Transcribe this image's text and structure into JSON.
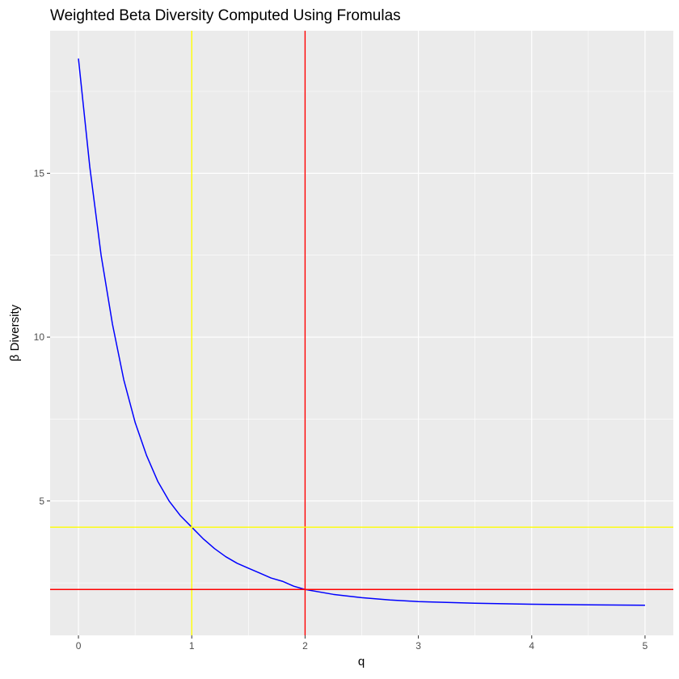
{
  "chart_data": {
    "type": "line",
    "title": "Weighted Beta Diversity Computed Using Fromulas",
    "xlabel": "q",
    "ylabel": "β Diversity",
    "xlim": [
      -0.25,
      5.25
    ],
    "ylim": [
      0.9,
      19.35
    ],
    "x_ticks": [
      0,
      1,
      2,
      3,
      4,
      5
    ],
    "x_tick_labels": [
      "0",
      "1",
      "2",
      "3",
      "4",
      "5"
    ],
    "y_ticks": [
      5,
      10,
      15
    ],
    "y_tick_labels": [
      "5",
      "10",
      "15"
    ],
    "grid": true,
    "panel_background": "#ebebeb",
    "series": [
      {
        "color": "#0000ff",
        "x": [
          0,
          0.1,
          0.2,
          0.3,
          0.4,
          0.5,
          0.6,
          0.7,
          0.8,
          0.9,
          1.0,
          1.1,
          1.2,
          1.3,
          1.4,
          1.5,
          1.6,
          1.7,
          1.8,
          1.9,
          2.0,
          2.25,
          2.5,
          2.75,
          3.0,
          3.5,
          4.0,
          4.5,
          5.0
        ],
        "y": [
          18.5,
          15.2,
          12.5,
          10.4,
          8.7,
          7.4,
          6.4,
          5.6,
          5.0,
          4.55,
          4.2,
          3.85,
          3.55,
          3.3,
          3.1,
          2.95,
          2.8,
          2.65,
          2.55,
          2.4,
          2.3,
          2.15,
          2.05,
          1.98,
          1.93,
          1.88,
          1.85,
          1.83,
          1.82
        ]
      }
    ],
    "reference_lines": [
      {
        "orientation": "vertical",
        "value": 1,
        "color": "#ffff00"
      },
      {
        "orientation": "vertical",
        "value": 2,
        "color": "#ff0000"
      },
      {
        "orientation": "horizontal",
        "value": 4.2,
        "color": "#ffff00"
      },
      {
        "orientation": "horizontal",
        "value": 2.3,
        "color": "#ff0000"
      }
    ]
  }
}
